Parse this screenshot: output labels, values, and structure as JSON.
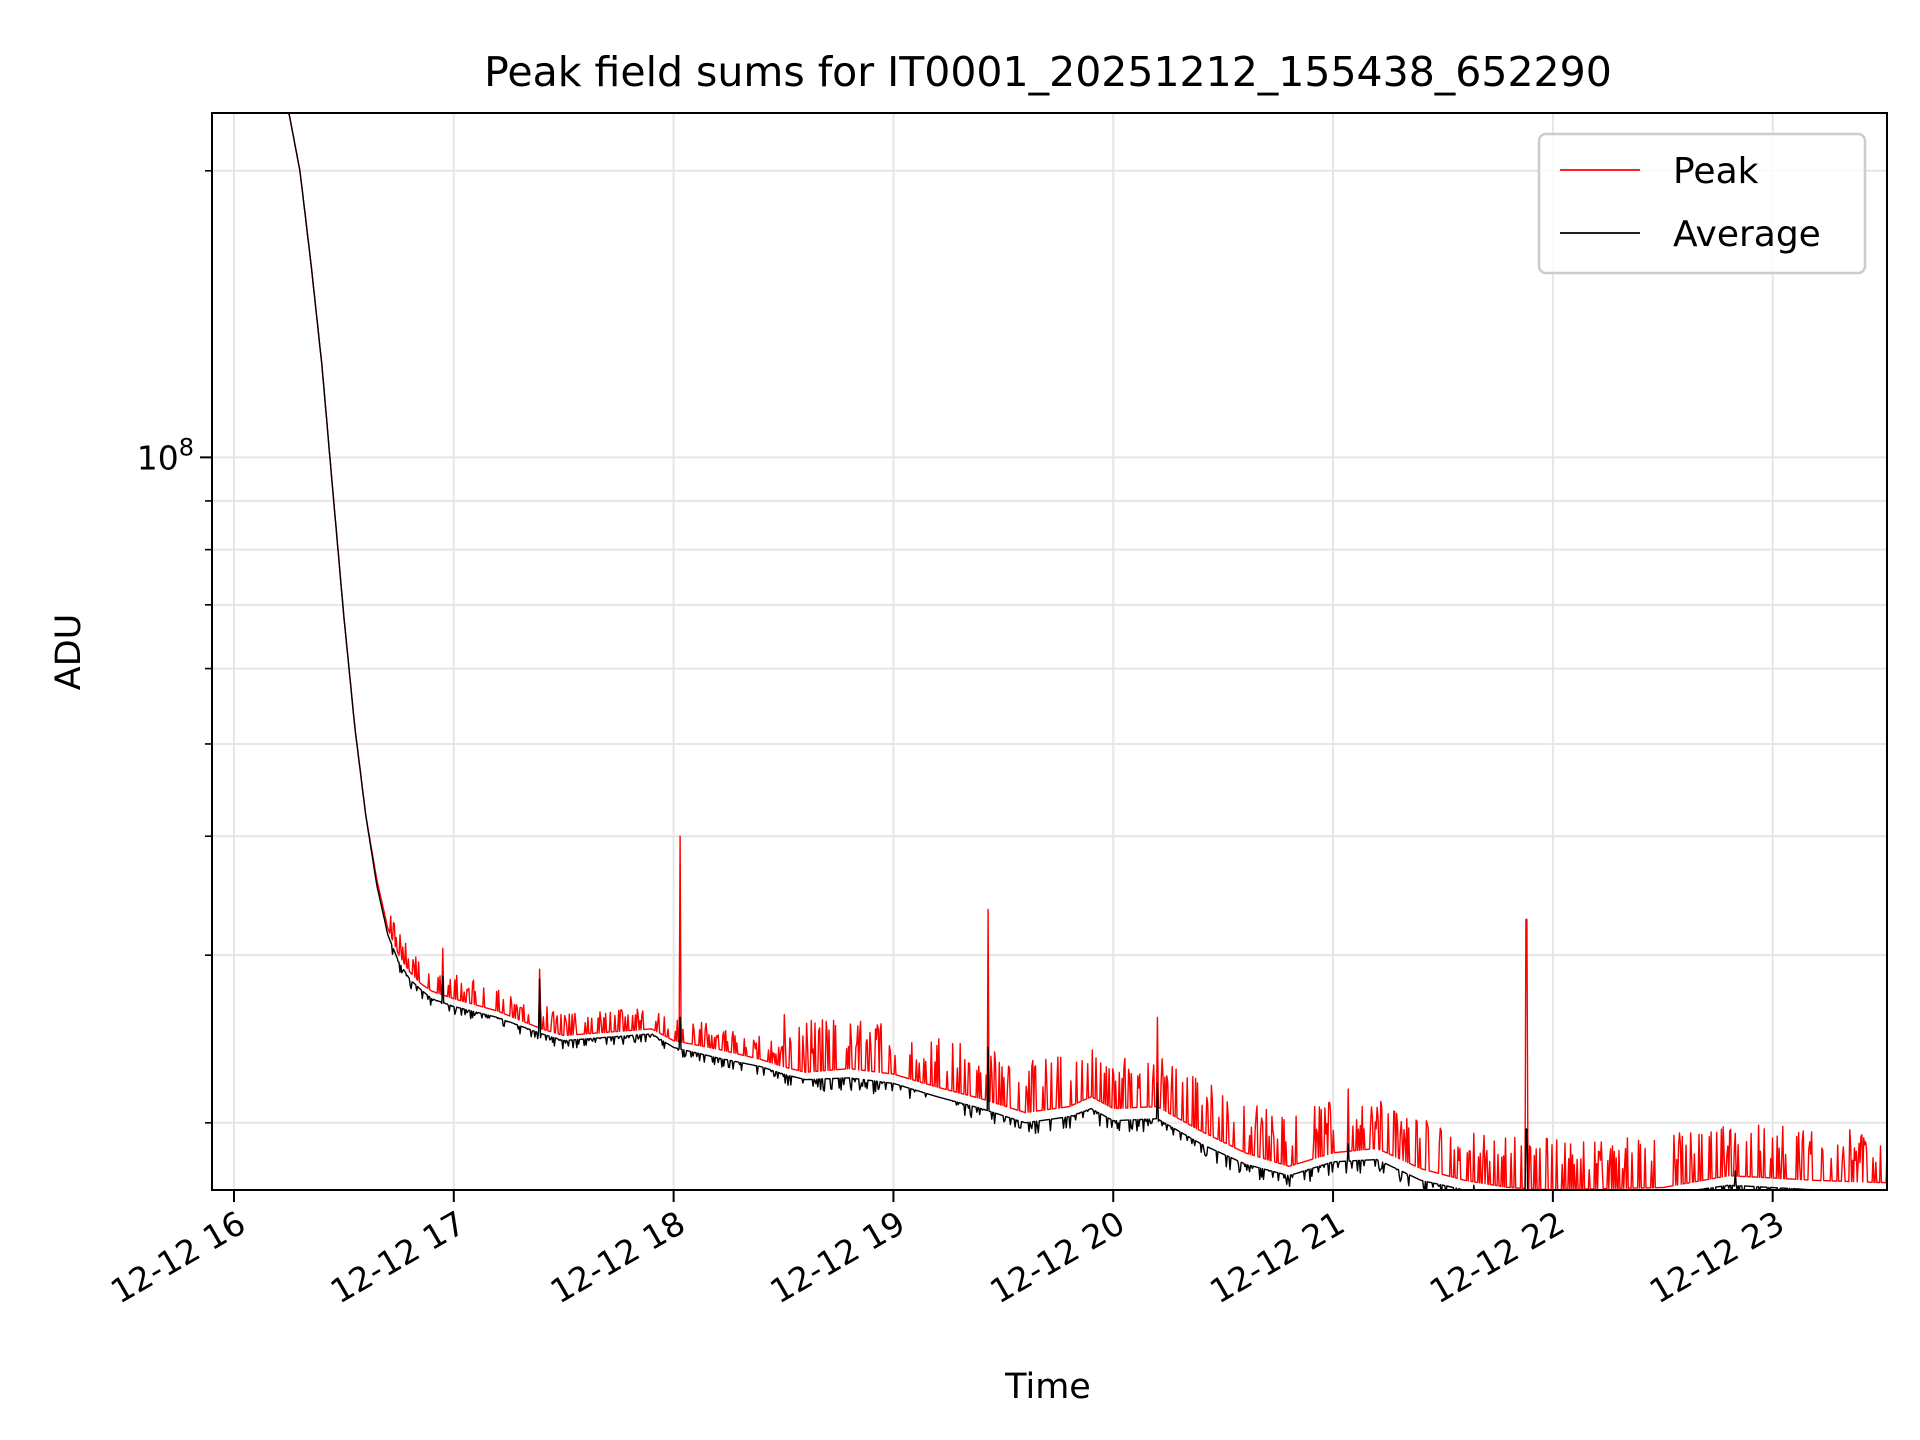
{
  "chart_data": {
    "type": "line",
    "title": "Peak field sums for IT0001_20251212_155438_652290",
    "xlabel": "Time",
    "ylabel": "ADU",
    "y_scale": "log",
    "x_unit": "hours",
    "xlim": [
      15.9,
      23.52
    ],
    "ylim": [
      17000000,
      230000000
    ],
    "x_tick_values": [
      16,
      17,
      18,
      19,
      20,
      21,
      22,
      23
    ],
    "x_tick_labels": [
      "12-12 16",
      "12-12 17",
      "12-12 18",
      "12-12 19",
      "12-12 20",
      "12-12 21",
      "12-12 22",
      "12-12 23"
    ],
    "y_tick_labels": [
      {
        "value": 100000000,
        "base": "10",
        "exp": "8"
      }
    ],
    "y_minor_ticks": [
      20000000,
      30000000,
      40000000,
      50000000,
      60000000,
      70000000,
      80000000,
      90000000,
      200000000
    ],
    "grid": true,
    "legend_position": "top-right",
    "series": [
      {
        "name": "Peak",
        "color": "#ff0000",
        "x": [
          15.9,
          16.1,
          16.25,
          16.3,
          16.35,
          16.4,
          16.45,
          16.5,
          16.55,
          16.6,
          16.65,
          16.7,
          16.75,
          16.8,
          16.85,
          16.9,
          17.0,
          17.2,
          17.4,
          17.5,
          17.7,
          17.9,
          18.0,
          18.2,
          18.4,
          18.5,
          18.6,
          18.8,
          19.0,
          19.2,
          19.4,
          19.6,
          19.8,
          19.9,
          20.0,
          20.2,
          20.4,
          20.6,
          20.8,
          21.0,
          21.2,
          21.4,
          21.6,
          21.8,
          22.0,
          22.2,
          22.5,
          22.8,
          23.0,
          23.2,
          23.52
        ],
        "values": [
          230000000,
          230000000,
          230000000,
          200000000,
          160000000,
          125000000,
          92000000,
          68000000,
          52000000,
          42000000,
          36000000,
          32000000,
          30000000,
          28800000,
          28000000,
          27500000,
          27000000,
          26200000,
          25100000,
          24700000,
          24900000,
          25100000,
          24400000,
          23900000,
          23300000,
          22900000,
          22600000,
          22800000,
          22500000,
          21800000,
          21200000,
          20500000,
          20800000,
          21300000,
          20700000,
          20800000,
          19600000,
          18600000,
          18000000,
          18600000,
          18800000,
          17900000,
          17400000,
          17100000,
          17000000,
          17050000,
          17100000,
          17600000,
          17500000,
          17400000,
          17300000
        ]
      },
      {
        "name": "Average",
        "color": "#000000",
        "x": [
          15.9,
          16.1,
          16.25,
          16.3,
          16.35,
          16.4,
          16.45,
          16.5,
          16.55,
          16.6,
          16.65,
          16.7,
          16.75,
          16.8,
          16.85,
          16.9,
          17.0,
          17.2,
          17.4,
          17.5,
          17.7,
          17.9,
          18.0,
          18.2,
          18.4,
          18.5,
          18.6,
          18.8,
          19.0,
          19.2,
          19.4,
          19.6,
          19.8,
          19.9,
          20.0,
          20.2,
          20.4,
          20.6,
          20.8,
          21.0,
          21.2,
          21.4,
          21.6,
          21.8,
          22.0,
          22.2,
          22.5,
          22.8,
          23.0,
          23.2,
          23.52
        ],
        "values": [
          230000000,
          230000000,
          230000000,
          200000000,
          160000000,
          125000000,
          92000000,
          68000000,
          52000000,
          42000000,
          35500000,
          31500000,
          29500000,
          28300000,
          27600000,
          27000000,
          26500000,
          25800000,
          24800000,
          24400000,
          24600000,
          24800000,
          24000000,
          23400000,
          22900000,
          22500000,
          22200000,
          22300000,
          22000000,
          21300000,
          20700000,
          20000000,
          20300000,
          20700000,
          20100000,
          20200000,
          19000000,
          18100000,
          17600000,
          18200000,
          18300000,
          17400000,
          17000000,
          16800000,
          16700000,
          16750000,
          16800000,
          17200000,
          17100000,
          17000000,
          16900000
        ]
      }
    ],
    "spikes": [
      {
        "x": 18.03,
        "peak": 40000000,
        "average": 25800000
      },
      {
        "x": 19.43,
        "peak": 33500000,
        "average": 24000000
      },
      {
        "x": 20.2,
        "peak": 25800000,
        "average": 22000000
      },
      {
        "x": 21.88,
        "peak": 32700000,
        "average": 19700000
      },
      {
        "x": 17.39,
        "peak": 29000000,
        "average": 28300000
      },
      {
        "x": 16.95,
        "peak": 30500000,
        "average": 28500000
      },
      {
        "x": 21.07,
        "peak": 21700000,
        "average": 19000000
      },
      {
        "x": 21.64,
        "peak": 19500000,
        "average": 17200000
      },
      {
        "x": 22.83,
        "peak": 19500000,
        "average": 17800000
      }
    ]
  }
}
